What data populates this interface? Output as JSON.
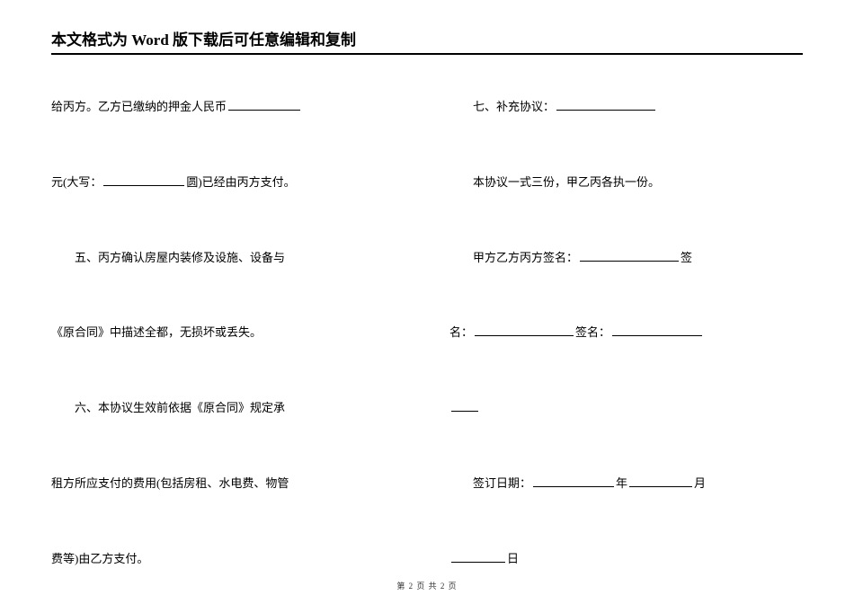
{
  "header": {
    "title": "本文格式为 Word 版下载后可任意编辑和复制"
  },
  "leftColumn": {
    "row1_prefix": "给丙方。乙方已缴纳的押金人民币",
    "row2_prefix": "元(大写：",
    "row2_suffix": "圆)已经由丙方支付。",
    "row3": "五、丙方确认房屋内装修及设施、设备与",
    "row4": "《原合同》中描述全都，无损坏或丢失。",
    "row5": "六、本协议生效前依据《原合同》规定承",
    "row6": "租方所应支付的费用(包括房租、水电费、物管",
    "row7": "费等)由乙方支付。"
  },
  "rightColumn": {
    "row1": "七、补充协议：",
    "row2": "本协议一式三份，甲乙丙各执一份。",
    "row3_prefix": "甲方乙方丙方签名：",
    "row3_suffix": "签",
    "row4_prefix": "名：",
    "row4_mid": "签名：",
    "row5_prefix": "签订日期：",
    "row5_year": "年",
    "row5_month": "月",
    "row6_suffix": "日"
  },
  "footer": {
    "text": "第 2 页 共 2 页"
  }
}
